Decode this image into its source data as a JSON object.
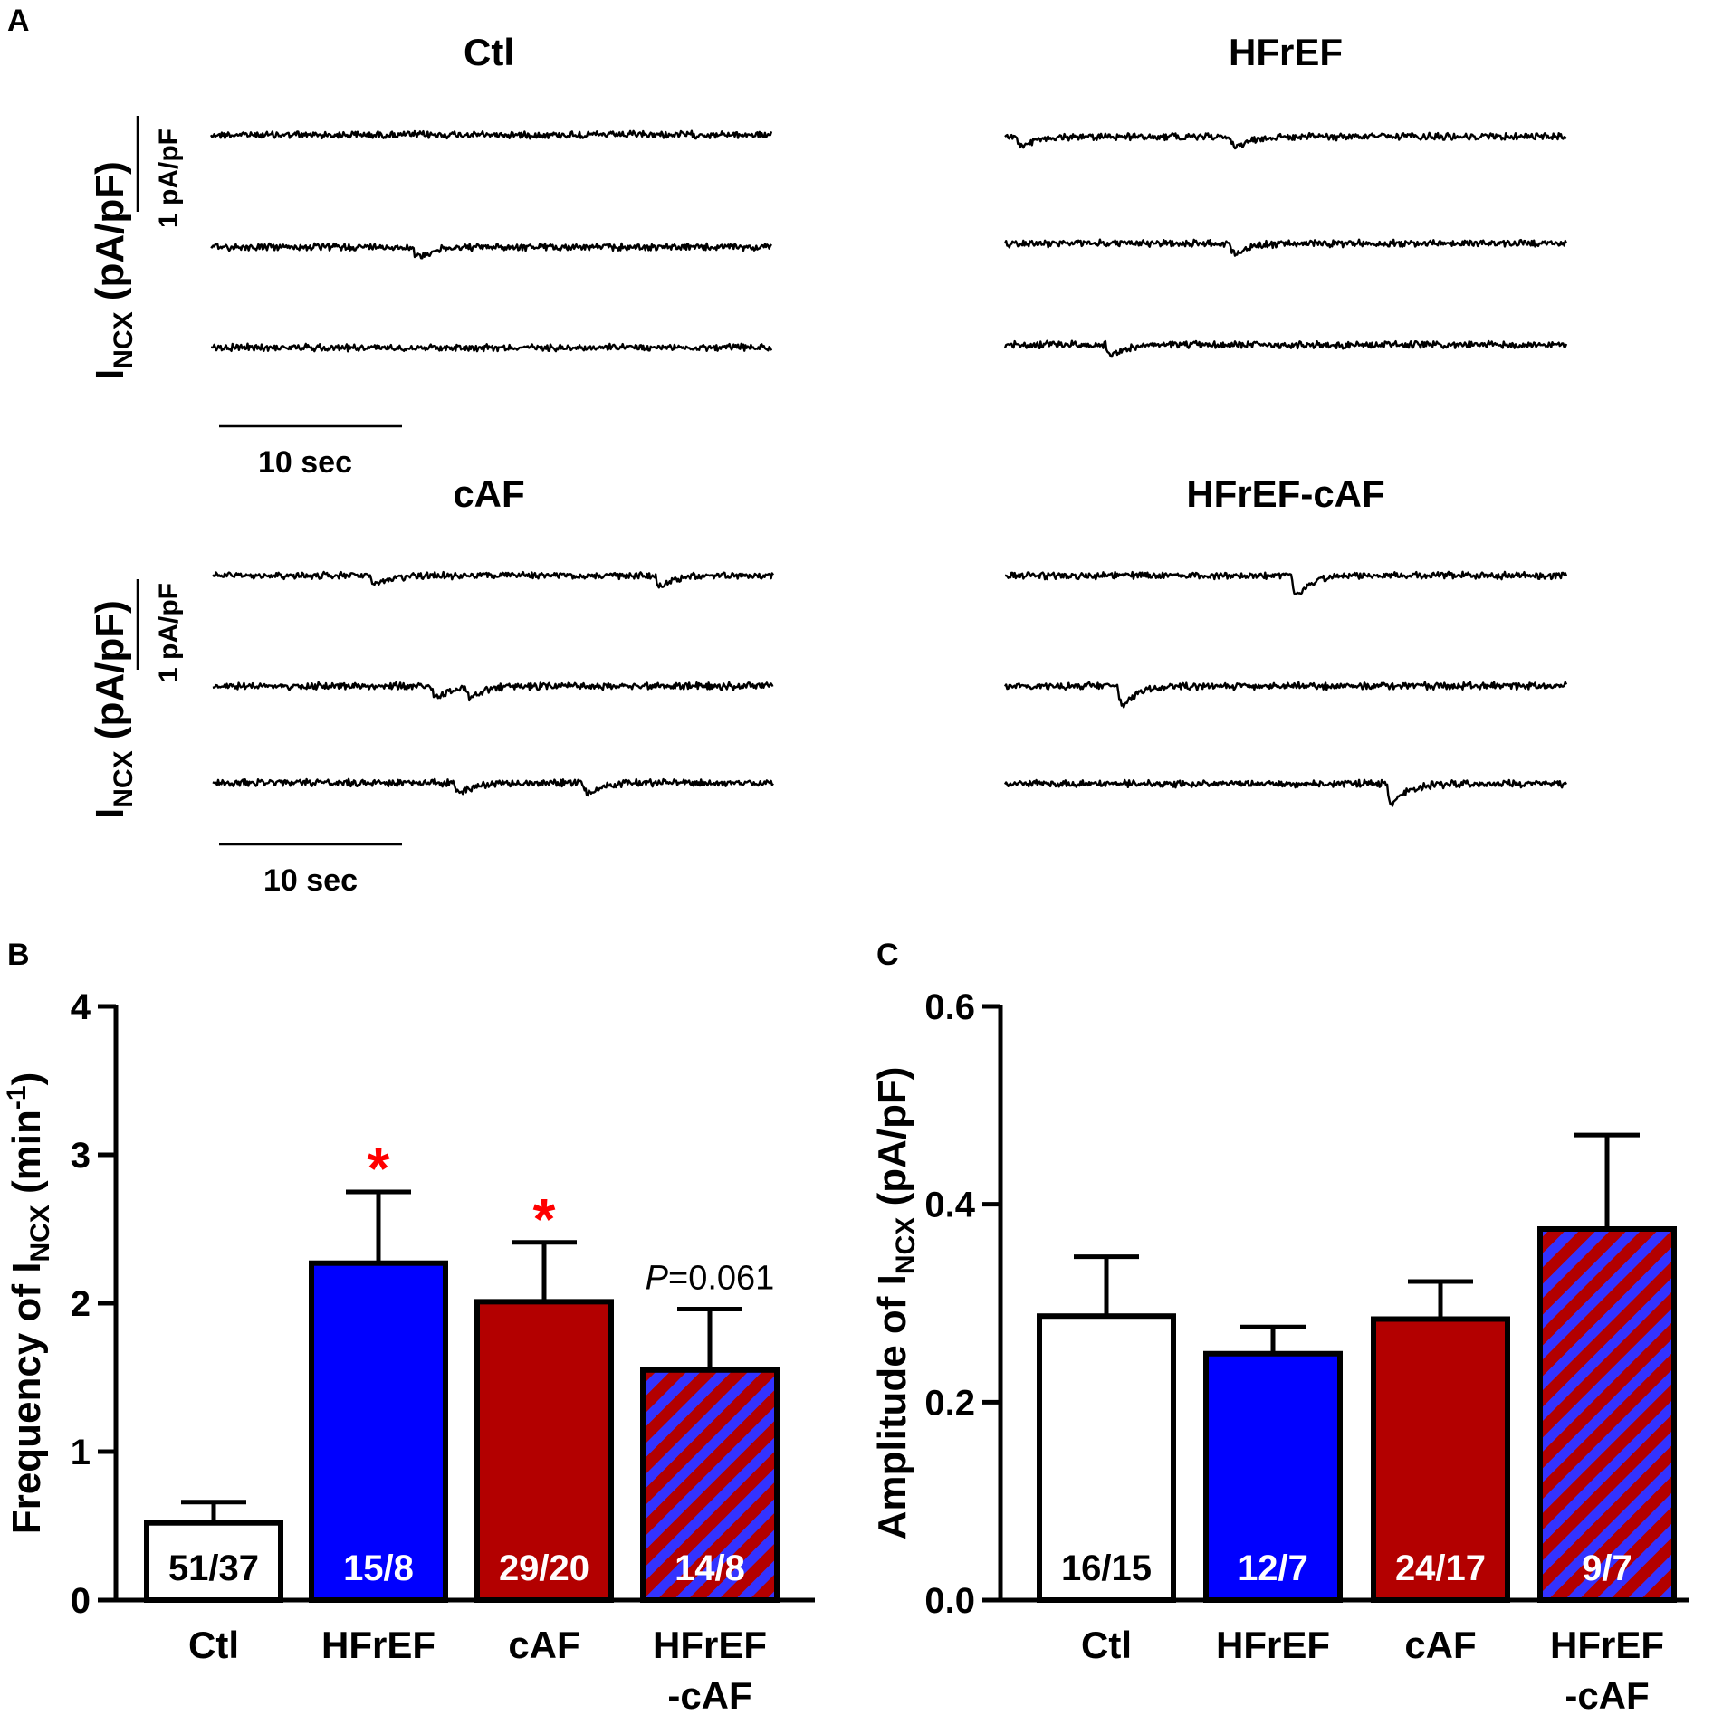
{
  "panel_labels": {
    "a": "A",
    "b": "B",
    "c": "C"
  },
  "colors": {
    "ctl": "#ffffff",
    "hfref": "#0000ff",
    "caf": "#b30000",
    "stripe_red": "#b30000",
    "stripe_blue": "#3333ff",
    "star": "#ff0000",
    "axis": "#000000"
  },
  "traces": {
    "ylabel_main": "I",
    "ylabel_sub": "NCX",
    "ylabel_unit": " (pA/pF)",
    "scale_y_label": "1 pA/pF",
    "scale_x_label": "10 sec",
    "groups": [
      {
        "name": "Ctl",
        "events": [
          [],
          [
            0.36
          ],
          []
        ]
      },
      {
        "name": "HFrEF",
        "events": [
          [
            0.02,
            0.4
          ],
          [
            0.4
          ],
          [
            0.18
          ]
        ]
      },
      {
        "name": "cAF",
        "events": [
          [
            0.28,
            0.79
          ],
          [
            0.39,
            0.45
          ],
          [
            0.43,
            0.66
          ]
        ]
      },
      {
        "name": "HFrEF-cAF",
        "events": [
          [
            0.51
          ],
          [
            0.2
          ],
          [
            0.68
          ]
        ]
      }
    ]
  },
  "chart_data": [
    {
      "type": "bar",
      "panel": "B",
      "title": "",
      "categories": [
        "Ctl",
        "HFrEF",
        "cAF",
        "HFrEF\n-cAF"
      ],
      "category_lines": [
        [
          "Ctl"
        ],
        [
          "HFrEF"
        ],
        [
          "cAF"
        ],
        [
          "HFrEF",
          "-cAF"
        ]
      ],
      "values": [
        0.52,
        2.27,
        2.01,
        1.55
      ],
      "errors": [
        0.14,
        0.48,
        0.4,
        0.41
      ],
      "n_labels": [
        "51/37",
        "15/8",
        "29/20",
        "14/8"
      ],
      "annotations": [
        "",
        "*",
        "*",
        "P=0.061"
      ],
      "ylabel": "Frequency of I",
      "ylabel_sub": "NCX",
      "ylabel_unit_open": " (min",
      "ylabel_unit_sup": "-1",
      "ylabel_unit_close": ")",
      "ylim": [
        0,
        4
      ],
      "yticks": [
        0,
        1,
        2,
        3,
        4
      ],
      "ytick_labels": [
        "0",
        "1",
        "2",
        "3",
        "4"
      ]
    },
    {
      "type": "bar",
      "panel": "C",
      "title": "",
      "categories": [
        "Ctl",
        "HFrEF",
        "cAF",
        "HFrEF\n-cAF"
      ],
      "category_lines": [
        [
          "Ctl"
        ],
        [
          "HFrEF"
        ],
        [
          "cAF"
        ],
        [
          "HFrEF",
          "-cAF"
        ]
      ],
      "values": [
        0.287,
        0.249,
        0.284,
        0.375
      ],
      "errors": [
        0.06,
        0.027,
        0.038,
        0.095
      ],
      "n_labels": [
        "16/15",
        "12/7",
        "24/17",
        "9/7"
      ],
      "annotations": [
        "",
        "",
        "",
        ""
      ],
      "ylabel": "Amplitude of I",
      "ylabel_sub": "NCX",
      "ylabel_unit_open": " (pA/pF)",
      "ylabel_unit_sup": "",
      "ylabel_unit_close": "",
      "ylim": [
        0,
        0.6
      ],
      "yticks": [
        0,
        0.2,
        0.4,
        0.6
      ],
      "ytick_labels": [
        "0.0",
        "0.2",
        "0.4",
        "0.6"
      ]
    }
  ]
}
